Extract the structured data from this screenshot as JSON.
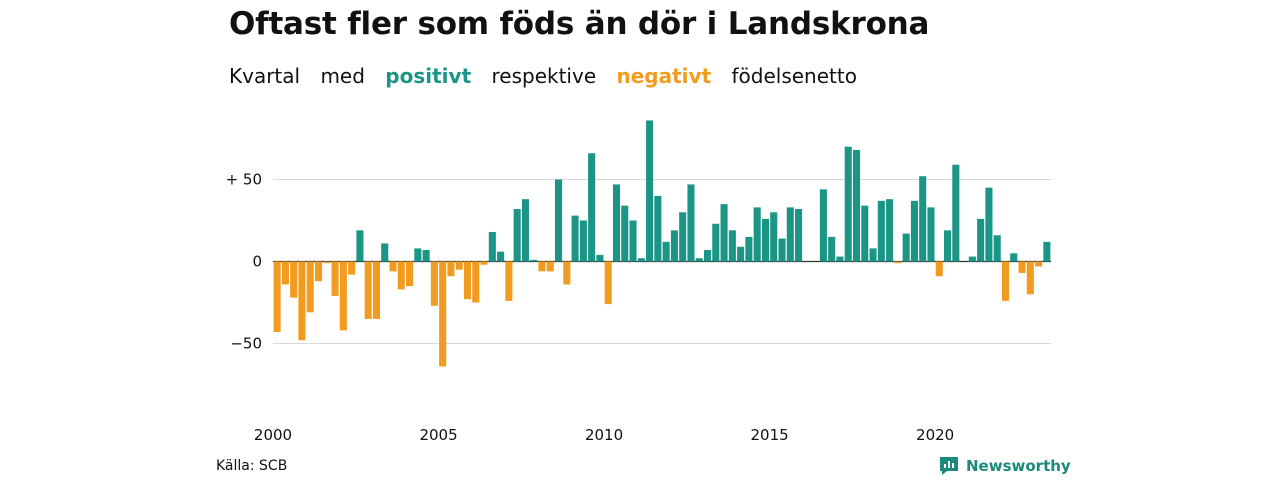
{
  "header": {
    "title": "Oftast fler som föds än dör i Landskrona",
    "subtitle_parts": [
      "Kvartal",
      "med",
      "positivt",
      "respektive",
      "negativt",
      "födelsenetto"
    ]
  },
  "footer": {
    "source": "Källa: SCB",
    "brand": "Newsworthy",
    "brand_icon": "newsworthy-logo-icon"
  },
  "colors": {
    "positive": "#1b9585",
    "negative": "#f29c1f",
    "grid": "#d9d9d9",
    "zero": "#333333"
  },
  "chart_data": {
    "type": "bar",
    "start_year": 2000,
    "periods_per_year": 4,
    "values": [
      -43,
      -14,
      -22,
      -48,
      -31,
      -12,
      -1,
      -21,
      -42,
      -8,
      19,
      -35,
      -35,
      11,
      -6,
      -17,
      -15,
      8,
      7,
      -27,
      -64,
      -9,
      -5,
      -23,
      -25,
      -2,
      18,
      6,
      -24,
      32,
      38,
      1,
      -6,
      -6,
      50,
      -14,
      28,
      25,
      66,
      4,
      -26,
      47,
      34,
      25,
      2,
      86,
      40,
      12,
      19,
      30,
      47,
      2,
      7,
      23,
      35,
      19,
      9,
      15,
      33,
      26,
      30,
      14,
      33,
      32,
      0,
      0,
      44,
      15,
      3,
      70,
      68,
      34,
      8,
      37,
      38,
      -1,
      17,
      37,
      52,
      33,
      -9,
      19,
      59,
      0,
      3,
      26,
      45,
      16,
      -24,
      5,
      -7,
      -20,
      -3,
      12
    ],
    "xticks": [
      2000,
      2005,
      2010,
      2015,
      2020
    ],
    "yticks": [
      50,
      0,
      -50
    ],
    "ytick_labels": [
      "+ 50",
      "0",
      "−50"
    ],
    "ylim": [
      -70,
      90
    ],
    "grid": true,
    "legend": "inline-in-subtitle"
  }
}
